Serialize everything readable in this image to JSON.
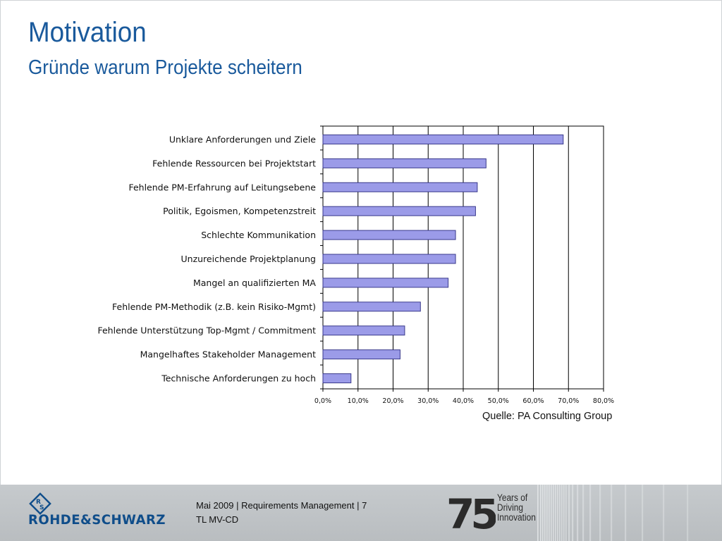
{
  "slide": {
    "title": "Motivation",
    "subtitle": "Gründe warum Projekte scheitern",
    "source": "Quelle: PA Consulting Group"
  },
  "footer": {
    "brand": "ROHDE&SCHWARZ",
    "date_title": "Mai 2009  |  Requirements Management  | 7",
    "department": "TL MV-CD",
    "anniversary_number": "75",
    "anniversary_line1": "Years of",
    "anniversary_line2": "Driving",
    "anniversary_line3": "Innovation"
  },
  "colors": {
    "title": "#1a5a9c",
    "bar_fill": "#9b9be8",
    "bar_stroke": "#3a3a8c",
    "brand": "#0f4d8a"
  },
  "chart_data": {
    "type": "bar",
    "orientation": "horizontal",
    "categories": [
      "Unklare Anforderungen und Ziele",
      "Fehlende Ressourcen bei Projektstart",
      "Fehlende PM-Erfahrung auf Leitungsebene",
      "Politik, Egoismen, Kompetenzstreit",
      "Schlechte Kommunikation",
      "Unzureichende Projektplanung",
      "Mangel an qualifizierten MA",
      "Fehlende PM-Methodik (z.B. kein Risiko-Mgmt)",
      "Fehlende Unterstützung Top-Mgmt / Commitment",
      "Mangelhaftes Stakeholder Management",
      "Technische Anforderungen zu hoch"
    ],
    "values": [
      68.5,
      46.5,
      44.0,
      43.5,
      37.8,
      37.8,
      35.7,
      27.8,
      23.3,
      22.0,
      8.0
    ],
    "xlim": [
      0,
      80
    ],
    "ticks": [
      "0,0%",
      "10,0%",
      "20,0%",
      "30,0%",
      "40,0%",
      "50,0%",
      "60,0%",
      "70,0%",
      "80,0%"
    ],
    "grid": true,
    "legend": "none"
  }
}
